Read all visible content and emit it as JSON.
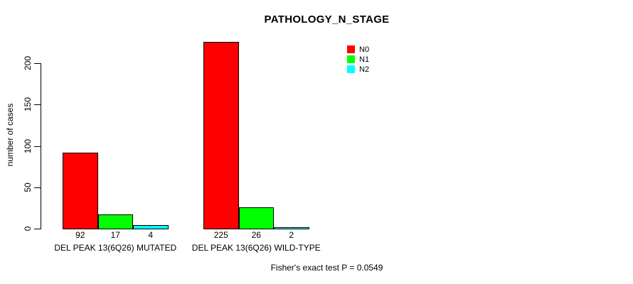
{
  "chart_data": {
    "type": "bar",
    "title": "PATHOLOGY_N_STAGE",
    "ylabel": "number of cases",
    "xlabel": "",
    "categories": [
      "DEL PEAK 13(6Q26) MUTATED",
      "DEL PEAK 13(6Q26) WILD-TYPE"
    ],
    "series": [
      {
        "name": "N0",
        "color": "#ff0000",
        "values": [
          92,
          225
        ]
      },
      {
        "name": "N1",
        "color": "#00ff00",
        "values": [
          17,
          26
        ]
      },
      {
        "name": "N2",
        "color": "#00ffff",
        "values": [
          4,
          2
        ]
      }
    ],
    "bar_value_labels": [
      [
        92,
        17,
        4
      ],
      [
        225,
        26,
        2
      ]
    ],
    "yticks": [
      0,
      50,
      100,
      150,
      200
    ],
    "ylim": [
      0,
      232
    ],
    "grid": false,
    "legend_position": "top-right",
    "legend_entries": [
      {
        "label": "N0",
        "color": "#ff0000"
      },
      {
        "label": "N1",
        "color": "#00ff00"
      },
      {
        "label": "N2",
        "color": "#00ffff"
      }
    ],
    "annotation": "Fisher's exact test P = 0.0549",
    "axis_color": "#000000",
    "text_color": "#000000",
    "background_color": "#ffffff"
  }
}
